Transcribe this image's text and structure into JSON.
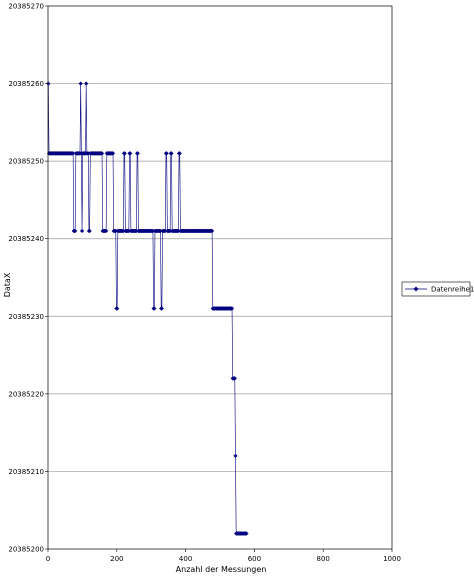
{
  "chart_data": {
    "type": "line",
    "xlabel": "Anzahl der Messungen",
    "ylabel": "DataX",
    "xlim": [
      0,
      1000
    ],
    "ylim": [
      20385200,
      20385270
    ],
    "x_ticks": [
      0,
      200,
      400,
      600,
      800,
      1000
    ],
    "y_ticks": [
      20385200,
      20385210,
      20385220,
      20385230,
      20385240,
      20385250,
      20385260,
      20385270
    ],
    "grid": {
      "horizontal": true,
      "vertical": false
    },
    "legend_position": "right",
    "series": [
      {
        "name": "Datenreihe1",
        "color": "#000080",
        "marker": "diamond",
        "x_start": 1,
        "x_step": 2,
        "values": [
          20385260,
          20385251,
          20385251,
          20385251,
          20385251,
          20385251,
          20385251,
          20385251,
          20385251,
          20385251,
          20385251,
          20385251,
          20385251,
          20385251,
          20385251,
          20385251,
          20385251,
          20385251,
          20385251,
          20385251,
          20385251,
          20385251,
          20385251,
          20385251,
          20385251,
          20385251,
          20385251,
          20385251,
          20385251,
          20385251,
          20385251,
          20385251,
          20385251,
          20385251,
          20385251,
          20385251,
          20385251,
          20385241,
          20385241,
          20385241,
          20385251,
          20385251,
          20385251,
          20385251,
          20385251,
          20385251,
          20385251,
          20385260,
          20385251,
          20385241,
          20385251,
          20385251,
          20385251,
          20385251,
          20385251,
          20385260,
          20385251,
          20385251,
          20385251,
          20385241,
          20385241,
          20385251,
          20385251,
          20385251,
          20385251,
          20385251,
          20385251,
          20385251,
          20385251,
          20385251,
          20385251,
          20385251,
          20385251,
          20385251,
          20385251,
          20385251,
          20385251,
          20385251,
          20385251,
          20385241,
          20385241,
          20385241,
          20385241,
          20385241,
          20385241,
          20385251,
          20385251,
          20385251,
          20385251,
          20385251,
          20385251,
          20385251,
          20385251,
          20385251,
          20385251,
          20385241,
          20385241,
          20385241,
          20385241,
          20385231,
          20385231,
          20385241,
          20385241,
          20385241,
          20385241,
          20385241,
          20385241,
          20385241,
          20385241,
          20385241,
          20385251,
          20385251,
          20385241,
          20385241,
          20385241,
          20385241,
          20385241,
          20385241,
          20385251,
          20385251,
          20385241,
          20385241,
          20385241,
          20385241,
          20385241,
          20385241,
          20385241,
          20385241,
          20385241,
          20385251,
          20385251,
          20385241,
          20385241,
          20385241,
          20385241,
          20385241,
          20385241,
          20385241,
          20385241,
          20385241,
          20385241,
          20385241,
          20385241,
          20385241,
          20385241,
          20385241,
          20385241,
          20385241,
          20385241,
          20385241,
          20385241,
          20385241,
          20385241,
          20385231,
          20385231,
          20385241,
          20385241,
          20385241,
          20385241,
          20385241,
          20385241,
          20385241,
          20385241,
          20385241,
          20385231,
          20385231,
          20385241,
          20385241,
          20385241,
          20385241,
          20385241,
          20385251,
          20385251,
          20385241,
          20385241,
          20385241,
          20385241,
          20385241,
          20385251,
          20385251,
          20385241,
          20385241,
          20385241,
          20385241,
          20385241,
          20385241,
          20385241,
          20385241,
          20385241,
          20385241,
          20385251,
          20385251,
          20385241,
          20385241,
          20385241,
          20385241,
          20385241,
          20385241,
          20385241,
          20385241,
          20385241,
          20385241,
          20385241,
          20385241,
          20385241,
          20385241,
          20385241,
          20385241,
          20385241,
          20385241,
          20385241,
          20385241,
          20385241,
          20385241,
          20385241,
          20385241,
          20385241,
          20385241,
          20385241,
          20385241,
          20385241,
          20385241,
          20385241,
          20385241,
          20385241,
          20385241,
          20385241,
          20385241,
          20385241,
          20385241,
          20385241,
          20385241,
          20385241,
          20385241,
          20385241,
          20385241,
          20385241,
          20385241,
          20385241,
          20385231,
          20385231,
          20385231,
          20385231,
          20385231,
          20385231,
          20385231,
          20385231,
          20385231,
          20385231,
          20385231,
          20385231,
          20385231,
          20385231,
          20385231,
          20385231,
          20385231,
          20385231,
          20385231,
          20385231,
          20385231,
          20385231,
          20385231,
          20385231,
          20385231,
          20385231,
          20385231,
          20385231,
          20385231,
          20385222,
          20385222,
          20385222,
          20385222,
          20385212,
          20385202,
          20385202,
          20385202,
          20385202,
          20385202,
          20385202,
          20385202,
          20385202,
          20385202,
          20385202,
          20385202,
          20385202,
          20385202,
          20385202,
          20385202,
          20385202
        ]
      }
    ]
  }
}
